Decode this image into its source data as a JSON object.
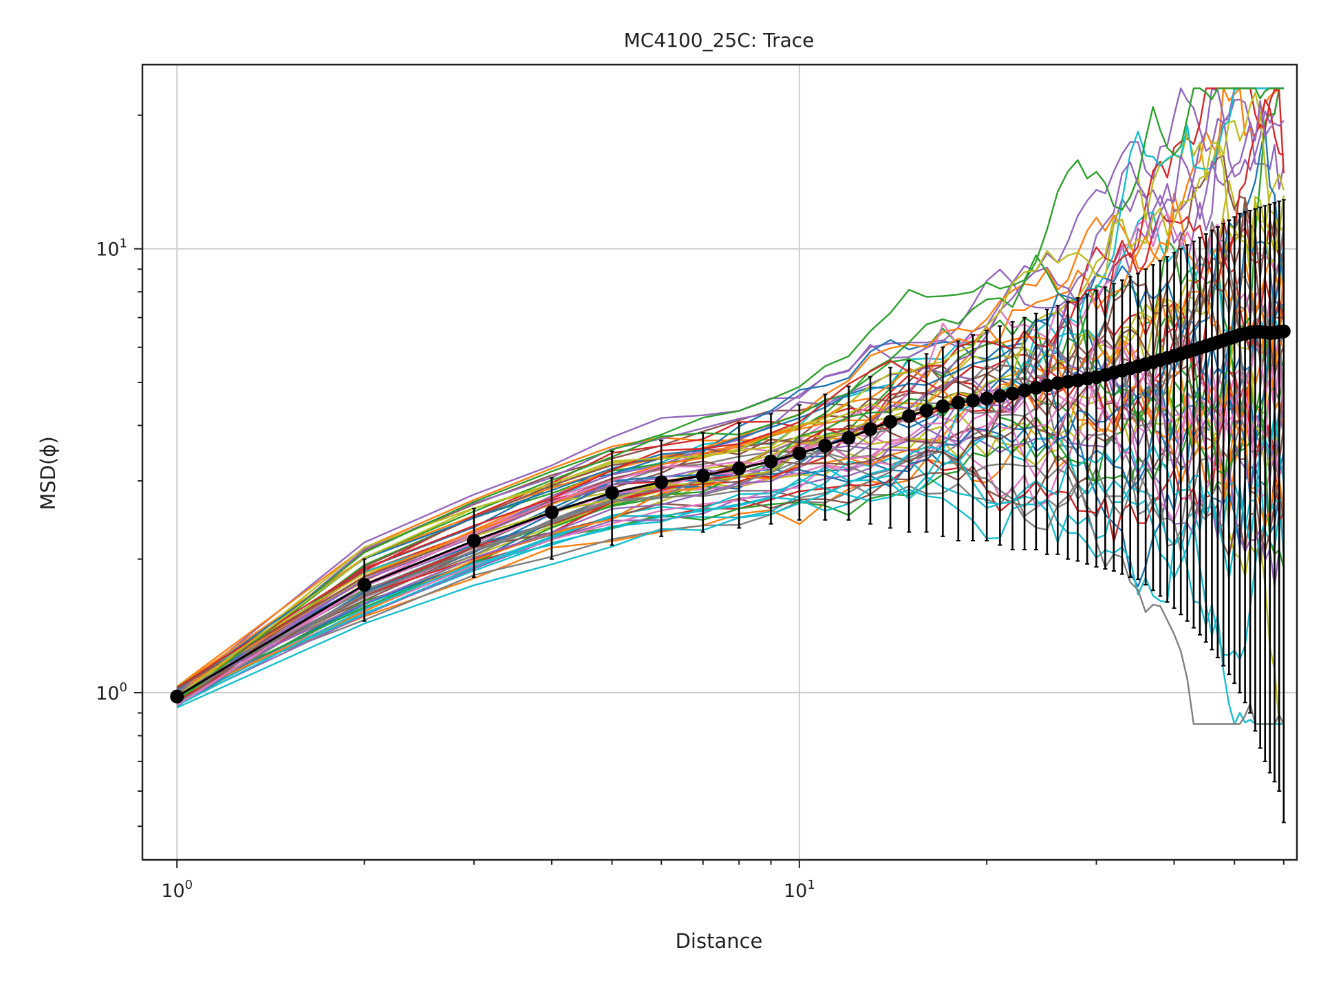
{
  "chart_data": {
    "type": "line",
    "title": "MC4100_25C: Trace",
    "xlabel": "Distance",
    "ylabel": "MSD(ϕ)",
    "xscale": "log",
    "yscale": "log",
    "xlim": [
      0.88,
      63
    ],
    "ylim": [
      0.42,
      26
    ],
    "grid": true,
    "x_ticks": [
      {
        "base": "10",
        "exp": "0",
        "value": 1
      },
      {
        "base": "10",
        "exp": "1",
        "value": 10
      }
    ],
    "y_ticks": [
      {
        "base": "10",
        "exp": "0",
        "value": 1
      },
      {
        "base": "10",
        "exp": "1",
        "value": 10
      }
    ],
    "palette": [
      "#1f77b4",
      "#ff7f0e",
      "#2ca02c",
      "#d62728",
      "#9467bd",
      "#8c564b",
      "#e377c2",
      "#7f7f7f",
      "#bcbd22",
      "#17becf"
    ],
    "mean_color": "#000000",
    "series_count": 60,
    "x": [
      1,
      2,
      3,
      4,
      5,
      6,
      7,
      8,
      9,
      10,
      11,
      12,
      13,
      14,
      15,
      16,
      17,
      18,
      19,
      20,
      21,
      22,
      23,
      24,
      25,
      26,
      27,
      28,
      29,
      30,
      31,
      32,
      33,
      34,
      35,
      36,
      37,
      38,
      39,
      40,
      41,
      42,
      43,
      44,
      45,
      46,
      47,
      48,
      49,
      50,
      51,
      52,
      53,
      54,
      55,
      56,
      57,
      58,
      59,
      60
    ],
    "mean": [
      0.98,
      1.75,
      2.2,
      2.55,
      2.82,
      2.98,
      3.08,
      3.2,
      3.32,
      3.46,
      3.6,
      3.75,
      3.92,
      4.08,
      4.2,
      4.32,
      4.42,
      4.5,
      4.55,
      4.6,
      4.66,
      4.72,
      4.8,
      4.86,
      4.92,
      4.98,
      5.02,
      5.05,
      5.1,
      5.14,
      5.2,
      5.26,
      5.32,
      5.38,
      5.44,
      5.5,
      5.56,
      5.62,
      5.68,
      5.74,
      5.8,
      5.86,
      5.92,
      5.98,
      6.04,
      6.1,
      6.16,
      6.22,
      6.28,
      6.34,
      6.4,
      6.44,
      6.48,
      6.5,
      6.5,
      6.48,
      6.46,
      6.47,
      6.5,
      6.52
    ],
    "error_low": [
      0.98,
      1.45,
      1.82,
      2.0,
      2.15,
      2.25,
      2.3,
      2.35,
      2.4,
      2.45,
      2.45,
      2.45,
      2.4,
      2.35,
      2.3,
      2.3,
      2.25,
      2.2,
      2.2,
      2.2,
      2.15,
      2.1,
      2.1,
      2.1,
      2.05,
      2.05,
      2.0,
      1.98,
      1.95,
      1.92,
      1.9,
      1.88,
      1.85,
      1.82,
      1.8,
      1.75,
      1.7,
      1.65,
      1.6,
      1.55,
      1.5,
      1.45,
      1.4,
      1.35,
      1.3,
      1.25,
      1.2,
      1.15,
      1.1,
      1.05,
      1.0,
      0.95,
      0.9,
      0.82,
      0.75,
      0.7,
      0.66,
      0.63,
      0.6,
      0.51
    ],
    "error_high": [
      0.98,
      2.0,
      2.6,
      3.05,
      3.5,
      3.7,
      3.85,
      4.05,
      4.25,
      4.45,
      4.7,
      4.9,
      5.15,
      5.4,
      5.6,
      5.8,
      6.0,
      6.2,
      6.4,
      6.55,
      6.7,
      6.85,
      7.0,
      7.15,
      7.3,
      7.45,
      7.6,
      7.75,
      7.9,
      8.05,
      8.2,
      8.35,
      8.5,
      8.65,
      8.8,
      9.0,
      9.2,
      9.4,
      9.6,
      9.8,
      10.0,
      10.2,
      10.4,
      10.6,
      10.8,
      11.0,
      11.2,
      11.4,
      11.6,
      11.8,
      12.0,
      12.1,
      12.2,
      12.3,
      12.4,
      12.5,
      12.6,
      12.7,
      12.8,
      12.9
    ]
  }
}
